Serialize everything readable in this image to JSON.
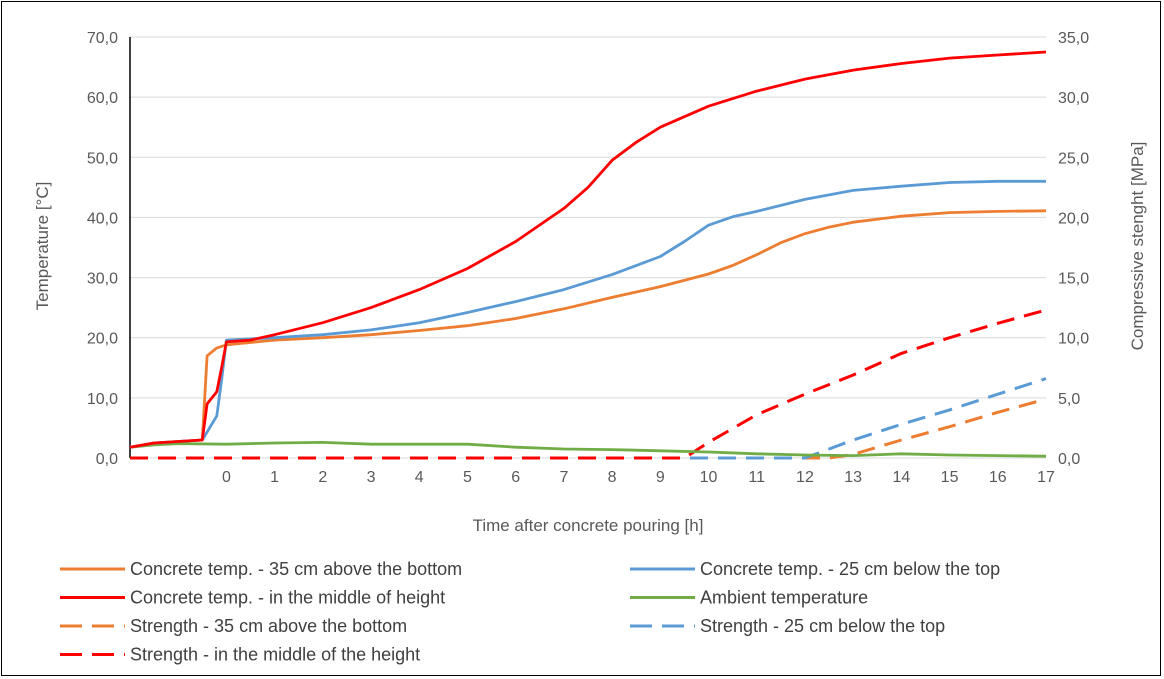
{
  "chart_data": {
    "type": "line",
    "xlabel": "Time after concrete pouring [h]",
    "ylabel": "Temperature [°C]",
    "y2label": "Compressive stenght [MPa]",
    "x_ticks": [
      "0",
      "1",
      "2",
      "3",
      "4",
      "5",
      "6",
      "7",
      "8",
      "9",
      "10",
      "11",
      "12",
      "13",
      "14",
      "15",
      "16",
      "17"
    ],
    "y_ticks": [
      "0,0",
      "10,0",
      "20,0",
      "30,0",
      "40,0",
      "50,0",
      "60,0",
      "70,0"
    ],
    "y2_ticks": [
      "0,0",
      "5,0",
      "10,0",
      "15,0",
      "20,0",
      "25,0",
      "30,0",
      "35,0"
    ],
    "xlim": [
      -2,
      17
    ],
    "ylim": [
      0,
      70
    ],
    "y2lim": [
      0,
      35
    ],
    "grid": true,
    "legend_position": "bottom",
    "series": [
      {
        "name": "Concrete temp. - 35 cm above the bottom",
        "axis": "left",
        "color": "#ED7D31",
        "dash": "solid",
        "x": [
          -2,
          -1.5,
          -0.5,
          -0.4,
          -0.2,
          0,
          0.5,
          1,
          2,
          3,
          4,
          5,
          6,
          7,
          8,
          9,
          10,
          10.5,
          11,
          11.5,
          12,
          12.5,
          13,
          14,
          15,
          16,
          17
        ],
        "y": [
          1.8,
          2.5,
          3.0,
          17.0,
          18.3,
          18.8,
          19.2,
          19.6,
          20.0,
          20.5,
          21.2,
          22.0,
          23.2,
          24.8,
          26.7,
          28.5,
          30.6,
          32.0,
          33.8,
          35.8,
          37.3,
          38.4,
          39.2,
          40.2,
          40.8,
          41.0,
          41.1
        ]
      },
      {
        "name": "Concrete temp. - 25 cm below the top",
        "axis": "left",
        "color": "#5B9BD5",
        "dash": "solid",
        "x": [
          -2,
          -1.5,
          -0.5,
          -0.2,
          -0.1,
          0,
          0.5,
          1,
          2,
          3,
          4,
          5,
          6,
          7,
          8,
          9,
          9.5,
          10,
          10.5,
          11,
          11.5,
          12,
          13,
          14,
          15,
          16,
          17
        ],
        "y": [
          1.8,
          2.5,
          3.0,
          7.0,
          13.0,
          19.6,
          19.8,
          20.0,
          20.5,
          21.3,
          22.5,
          24.2,
          26.0,
          28.0,
          30.5,
          33.5,
          36.0,
          38.7,
          40.1,
          41.0,
          42.0,
          43.0,
          44.5,
          45.2,
          45.8,
          46.0,
          46.0
        ]
      },
      {
        "name": "Concrete temp. - in the middle of height",
        "axis": "left",
        "color": "#FF0000",
        "dash": "solid",
        "x": [
          -2,
          -1.5,
          -0.5,
          -0.4,
          -0.2,
          -0.1,
          0,
          0.5,
          1,
          2,
          3,
          4,
          5,
          6,
          7,
          7.5,
          8,
          8.5,
          9,
          10,
          11,
          12,
          13,
          14,
          15,
          16,
          17
        ],
        "y": [
          1.8,
          2.5,
          3.0,
          9.0,
          11.0,
          15.0,
          19.3,
          19.6,
          20.5,
          22.5,
          25.0,
          28.0,
          31.5,
          36.0,
          41.5,
          45.0,
          49.5,
          52.5,
          55.0,
          58.5,
          61.0,
          63.0,
          64.5,
          65.6,
          66.5,
          67.0,
          67.5
        ]
      },
      {
        "name": "Ambient temperature",
        "axis": "left",
        "color": "#70AD47",
        "dash": "solid",
        "x": [
          -2,
          -1.5,
          -1,
          0,
          1,
          2,
          3,
          4,
          5,
          6,
          7,
          8,
          9,
          10,
          11,
          12,
          13,
          14,
          15,
          16,
          17
        ],
        "y": [
          1.8,
          2.2,
          2.4,
          2.3,
          2.5,
          2.6,
          2.3,
          2.3,
          2.3,
          1.8,
          1.5,
          1.4,
          1.2,
          1.0,
          0.7,
          0.5,
          0.4,
          0.7,
          0.5,
          0.4,
          0.3
        ]
      },
      {
        "name": "Strength - 35 cm above the bottom",
        "axis": "right",
        "color": "#ED7D31",
        "dash": "dashed",
        "x": [
          -2,
          12.5,
          13,
          14,
          15,
          16,
          17
        ],
        "y": [
          0,
          0,
          0.3,
          1.5,
          2.6,
          3.8,
          4.9
        ]
      },
      {
        "name": "Strength - 25 cm below the top",
        "axis": "right",
        "color": "#5B9BD5",
        "dash": "dashed",
        "x": [
          -2,
          12,
          13,
          14,
          15,
          16,
          17
        ],
        "y": [
          0,
          0,
          1.5,
          2.8,
          4.0,
          5.3,
          6.6
        ]
      },
      {
        "name": "Strength - in the middle of the height",
        "axis": "right",
        "color": "#FF0000",
        "dash": "dashed",
        "x": [
          -2,
          9.5,
          10,
          11,
          12,
          13,
          14,
          15,
          16,
          17
        ],
        "y": [
          0,
          0,
          1.3,
          3.6,
          5.3,
          6.9,
          8.7,
          10.0,
          11.2,
          12.3
        ]
      }
    ]
  }
}
